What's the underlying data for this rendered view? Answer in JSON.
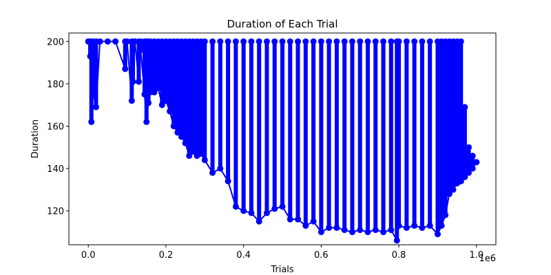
{
  "chart_data": {
    "type": "line",
    "title": "Duration of Each Trial",
    "xlabel": "Trials",
    "ylabel": "Duration",
    "x_offset_label": "1e6",
    "xlim": [
      -0.05,
      1.05
    ],
    "ylim": [
      104,
      204
    ],
    "xticks": [
      0.0,
      0.2,
      0.4,
      0.6,
      0.8,
      1.0
    ],
    "xtick_labels": [
      "0.0",
      "0.2",
      "0.4",
      "0.6",
      "0.8",
      "1.0"
    ],
    "yticks": [
      120,
      140,
      160,
      180,
      200
    ],
    "ytick_labels": [
      "120",
      "140",
      "160",
      "180",
      "200"
    ],
    "grid": false,
    "legend": "none",
    "series_color": "#0000ff",
    "marker": "circle",
    "series": [
      {
        "x": [
          0.0,
          0.005,
          0.008,
          0.012,
          0.02,
          0.03,
          0.05,
          0.07,
          0.095,
          0.1,
          0.112,
          0.115,
          0.12,
          0.13,
          0.135,
          0.145,
          0.15,
          0.155,
          0.16,
          0.17,
          0.18,
          0.19,
          0.2,
          0.21,
          0.22,
          0.23,
          0.24,
          0.25,
          0.26,
          0.27,
          0.28,
          0.29,
          0.3,
          0.32,
          0.34,
          0.36,
          0.38,
          0.4,
          0.42,
          0.44,
          0.46,
          0.48,
          0.5,
          0.52,
          0.54,
          0.56,
          0.58,
          0.6,
          0.62,
          0.64,
          0.66,
          0.68,
          0.7,
          0.72,
          0.74,
          0.76,
          0.78,
          0.795,
          0.8,
          0.82,
          0.84,
          0.86,
          0.88,
          0.9,
          0.91,
          0.92,
          0.93,
          0.94,
          0.95,
          0.96,
          0.97,
          0.98,
          0.99,
          1.0
        ],
        "low": [
          200,
          193,
          162,
          176,
          169,
          200,
          200,
          200,
          187,
          200,
          172,
          181,
          200,
          181,
          196,
          175,
          162,
          171,
          176,
          176,
          178,
          170,
          172,
          167,
          160,
          157,
          155,
          152,
          146,
          148,
          146,
          147,
          144,
          138,
          140,
          134,
          122,
          120,
          119,
          115,
          119,
          121,
          122,
          116,
          116,
          113,
          115,
          110,
          112,
          112,
          111,
          110,
          111,
          110,
          111,
          110,
          111,
          106,
          113,
          112,
          113,
          112,
          113,
          109,
          113,
          118,
          128,
          130,
          133,
          134,
          136,
          138,
          140,
          143
        ],
        "high": [
          200,
          200,
          200,
          200,
          200,
          200,
          200,
          200,
          200,
          200,
          200,
          200,
          200,
          200,
          200,
          200,
          200,
          200,
          200,
          200,
          200,
          200,
          200,
          200,
          200,
          200,
          200,
          200,
          200,
          200,
          200,
          200,
          200,
          200,
          200,
          200,
          200,
          200,
          200,
          200,
          200,
          200,
          200,
          200,
          200,
          200,
          200,
          200,
          200,
          200,
          200,
          200,
          200,
          200,
          200,
          200,
          200,
          200,
          200,
          200,
          200,
          200,
          200,
          200,
          200,
          200,
          200,
          200,
          200,
          200,
          169,
          150,
          146,
          143
        ]
      }
    ]
  }
}
